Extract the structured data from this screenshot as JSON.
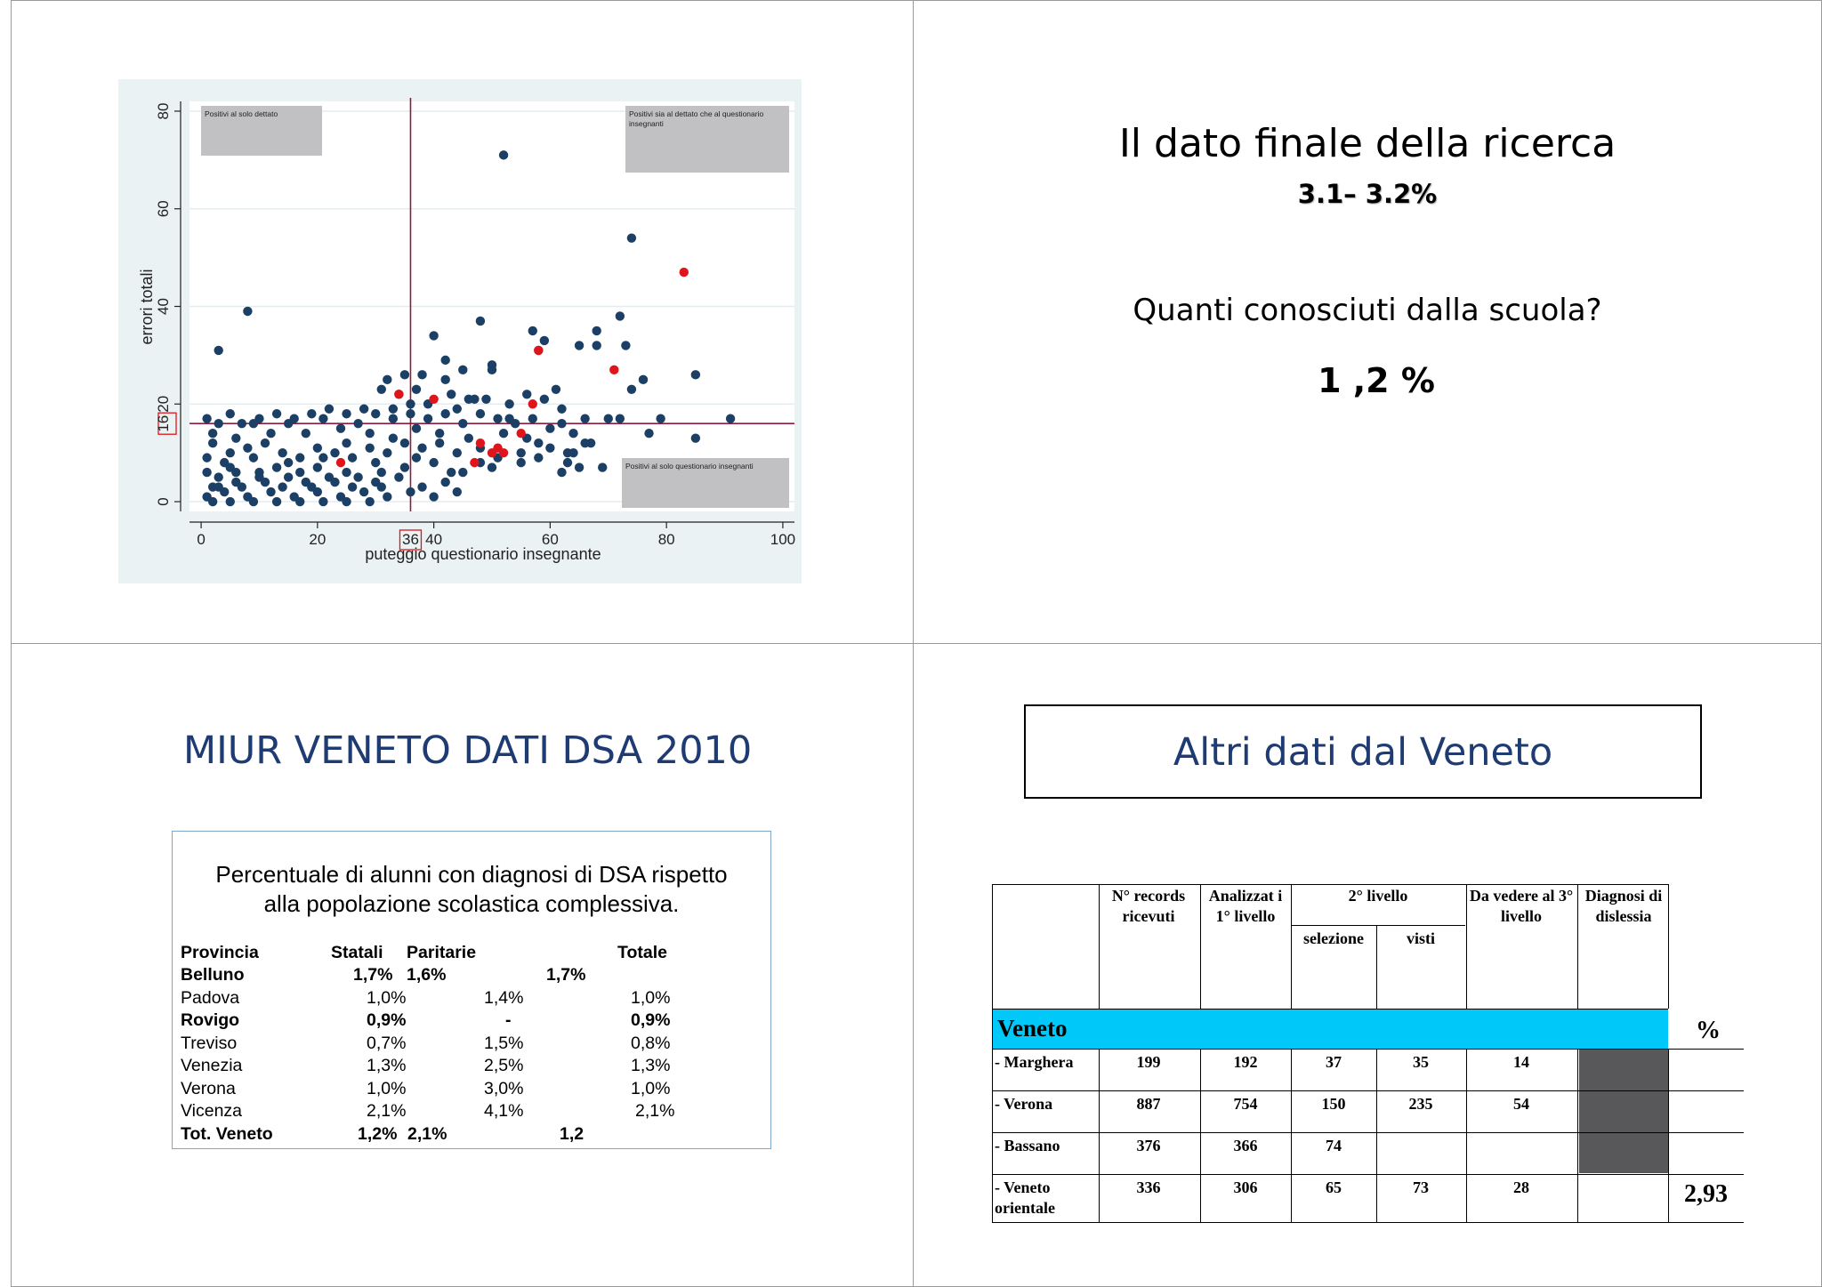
{
  "slide1": {
    "chart_data": {
      "type": "scatter",
      "xlabel": "puteggio questionario insegnante",
      "ylabel": "errori totali",
      "xlim": [
        -2,
        102
      ],
      "ylim": [
        -2,
        82
      ],
      "x_ticks": [
        "0",
        "20",
        "40",
        "60",
        "80",
        "100"
      ],
      "y_ticks": [
        "0",
        "20",
        "40",
        "60",
        "80"
      ],
      "x_ticks_values": [
        0,
        20,
        40,
        60,
        80,
        100
      ],
      "y_ticks_values": [
        0,
        20,
        40,
        60,
        80
      ],
      "threshold_x": 36,
      "threshold_y": 16,
      "threshold_x_label": "36",
      "threshold_y_label": "16",
      "grid": true,
      "annotations": [
        "Positivi al solo dettato",
        "Positivi sia al dettato che al questionario insegnanti",
        "Positivi al solo questionario insegnanti"
      ],
      "series": [
        {
          "color": "#1c3f66",
          "points": [
            [
              52,
              71
            ],
            [
              74,
              54
            ],
            [
              8,
              39
            ],
            [
              72,
              38
            ],
            [
              48,
              37
            ],
            [
              3,
              31
            ],
            [
              40,
              34
            ],
            [
              58,
              31
            ],
            [
              57,
              35
            ],
            [
              59,
              33
            ],
            [
              65,
              32
            ],
            [
              68,
              35
            ],
            [
              68,
              32
            ],
            [
              73,
              32
            ],
            [
              85,
              26
            ],
            [
              76,
              25
            ],
            [
              74,
              23
            ],
            [
              50,
              28
            ],
            [
              50,
              27
            ],
            [
              42,
              29
            ],
            [
              45,
              27
            ],
            [
              42,
              25
            ],
            [
              38,
              26
            ],
            [
              35,
              26
            ],
            [
              32,
              25
            ],
            [
              31,
              23
            ],
            [
              34,
              22
            ],
            [
              37,
              23
            ],
            [
              43,
              22
            ],
            [
              46,
              21
            ],
            [
              49,
              21
            ],
            [
              53,
              20
            ],
            [
              56,
              22
            ],
            [
              59,
              21
            ],
            [
              61,
              23
            ],
            [
              62,
              19
            ],
            [
              57,
              17
            ],
            [
              54,
              16
            ],
            [
              51,
              17
            ],
            [
              48,
              18
            ],
            [
              45,
              16
            ],
            [
              42,
              18
            ],
            [
              39,
              17
            ],
            [
              36,
              18
            ],
            [
              33,
              17
            ],
            [
              30,
              18
            ],
            [
              28,
              19
            ],
            [
              25,
              18
            ],
            [
              22,
              19
            ],
            [
              19,
              18
            ],
            [
              16,
              17
            ],
            [
              13,
              18
            ],
            [
              10,
              17
            ],
            [
              7,
              16
            ],
            [
              5,
              18
            ],
            [
              3,
              16
            ],
            [
              1,
              17
            ],
            [
              66,
              17
            ],
            [
              70,
              17
            ],
            [
              72,
              17
            ],
            [
              79,
              17
            ],
            [
              77,
              14
            ],
            [
              85,
              13
            ],
            [
              91,
              17
            ],
            [
              67,
              12
            ],
            [
              63,
              10
            ],
            [
              60,
              11
            ],
            [
              58,
              9
            ],
            [
              55,
              10
            ],
            [
              51,
              9
            ],
            [
              48,
              11
            ],
            [
              44,
              10
            ],
            [
              41,
              12
            ],
            [
              38,
              11
            ],
            [
              35,
              12
            ],
            [
              32,
              10
            ],
            [
              29,
              11
            ],
            [
              26,
              9
            ],
            [
              23,
              10
            ],
            [
              20,
              11
            ],
            [
              17,
              9
            ],
            [
              14,
              10
            ],
            [
              11,
              12
            ],
            [
              8,
              11
            ],
            [
              5,
              10
            ],
            [
              2,
              12
            ],
            [
              1,
              9
            ],
            [
              65,
              7
            ],
            [
              69,
              7
            ],
            [
              62,
              6
            ],
            [
              55,
              8
            ],
            [
              50,
              7
            ],
            [
              45,
              6
            ],
            [
              40,
              8
            ],
            [
              35,
              7
            ],
            [
              30,
              8
            ],
            [
              25,
              6
            ],
            [
              20,
              7
            ],
            [
              15,
              8
            ],
            [
              10,
              6
            ],
            [
              5,
              7
            ],
            [
              1,
              6
            ],
            [
              42,
              4
            ],
            [
              38,
              3
            ],
            [
              34,
              5
            ],
            [
              30,
              4
            ],
            [
              26,
              3
            ],
            [
              22,
              5
            ],
            [
              18,
              4
            ],
            [
              14,
              3
            ],
            [
              10,
              5
            ],
            [
              6,
              4
            ],
            [
              2,
              3
            ],
            [
              1,
              1
            ],
            [
              4,
              2
            ],
            [
              8,
              1
            ],
            [
              12,
              2
            ],
            [
              16,
              1
            ],
            [
              20,
              2
            ],
            [
              24,
              1
            ],
            [
              28,
              2
            ],
            [
              32,
              1
            ],
            [
              36,
              2
            ],
            [
              40,
              1
            ],
            [
              44,
              2
            ],
            [
              3,
              5
            ],
            [
              7,
              3
            ],
            [
              11,
              4
            ],
            [
              15,
              5
            ],
            [
              19,
              3
            ],
            [
              23,
              4
            ],
            [
              27,
              5
            ],
            [
              31,
              3
            ],
            [
              4,
              8
            ],
            [
              9,
              9
            ],
            [
              13,
              7
            ],
            [
              17,
              6
            ],
            [
              21,
              9
            ],
            [
              25,
              12
            ],
            [
              29,
              14
            ],
            [
              33,
              13
            ],
            [
              37,
              15
            ],
            [
              41,
              14
            ],
            [
              46,
              13
            ],
            [
              52,
              14
            ],
            [
              56,
              13
            ],
            [
              60,
              15
            ],
            [
              64,
              14
            ],
            [
              47,
              21
            ],
            [
              44,
              19
            ],
            [
              36,
              20
            ],
            [
              27,
              16
            ],
            [
              24,
              15
            ],
            [
              18,
              14
            ],
            [
              12,
              14
            ],
            [
              6,
              13
            ],
            [
              2,
              14
            ],
            [
              62,
              16
            ],
            [
              66,
              12
            ],
            [
              58,
              12
            ],
            [
              9,
              16
            ],
            [
              15,
              16
            ],
            [
              21,
              17
            ],
            [
              33,
              19
            ],
            [
              39,
              20
            ],
            [
              53,
              17
            ],
            [
              63,
              8
            ],
            [
              64,
              10
            ],
            [
              48,
              8
            ],
            [
              43,
              6
            ],
            [
              37,
              9
            ],
            [
              31,
              6
            ],
            [
              6,
              6
            ],
            [
              3,
              3
            ],
            [
              2,
              0
            ],
            [
              5,
              0
            ],
            [
              9,
              0
            ],
            [
              13,
              0
            ],
            [
              17,
              0
            ],
            [
              21,
              0
            ],
            [
              25,
              0
            ],
            [
              29,
              0
            ]
          ]
        },
        {
          "color": "#e0141b",
          "points": [
            [
              83,
              47
            ],
            [
              58,
              31
            ],
            [
              71,
              27
            ],
            [
              34,
              22
            ],
            [
              40,
              21
            ],
            [
              57,
              20
            ],
            [
              55,
              14
            ],
            [
              48,
              12
            ],
            [
              51,
              11
            ],
            [
              52,
              10
            ],
            [
              50,
              10
            ],
            [
              47,
              8
            ],
            [
              24,
              8
            ]
          ]
        }
      ]
    }
  },
  "slide2": {
    "title": "Il dato finale della ricerca",
    "range": "3.1– 3.2%",
    "question": "Quanti conosciuti dalla scuola?",
    "answer": "1 ,2  %"
  },
  "slide3": {
    "title": "MIUR VENETO DATI DSA 2010",
    "caption_line1": "Percentuale di alunni con diagnosi di DSA rispetto",
    "caption_line2": "alla popolazione scolastica complessiva.",
    "headers": [
      "Provincia",
      "Statali",
      "Paritarie",
      "Totale"
    ],
    "rows": [
      {
        "provincia": "Belluno",
        "statali": "1,7%",
        "paritarie": "1,6%",
        "totale": "1,7%",
        "bold": true
      },
      {
        "provincia": "Padova",
        "statali": "1,0%",
        "paritarie": "1,4%",
        "totale": "1,0%",
        "bold": false
      },
      {
        "provincia": "Rovigo",
        "statali": "0,9%",
        "paritarie": "-",
        "totale": "0,9%",
        "bold": true
      },
      {
        "provincia": "Treviso",
        "statali": "0,7%",
        "paritarie": "1,5%",
        "totale": "0,8%",
        "bold": false
      },
      {
        "provincia": "Venezia",
        "statali": "1,3%",
        "paritarie": "2,5%",
        "totale": "1,3%",
        "bold": false
      },
      {
        "provincia": "Verona",
        "statali": "1,0%",
        "paritarie": "3,0%",
        "totale": "1,0%",
        "bold": false
      },
      {
        "provincia": "Vicenza",
        "statali": "2,1%",
        "paritarie": "4,1%",
        "totale": "2,1%",
        "bold": false
      },
      {
        "provincia": "Tot. Veneto",
        "statali": "1,2%",
        "paritarie": "2,1%",
        "totale": "1,2",
        "bold": true
      }
    ]
  },
  "slide4": {
    "title": "Altri dati dal Veneto",
    "headers": {
      "records": "N° records ricevuti",
      "analizzati": "Analizzat i 1° livello",
      "secondo": "2° livello",
      "selezione": "selezione",
      "visti": "visti",
      "da_vedere": "Da vedere al 3° livello",
      "diagnosi": "Diagnosi di dislessia",
      "percent": "%"
    },
    "region": "Veneto",
    "rows": [
      {
        "name": "- Marghera",
        "records": "199",
        "analizzati": "192",
        "selezione": "37",
        "visti": "35",
        "da_vedere": "14",
        "diagnosi": "",
        "pct": ""
      },
      {
        "name": "- Verona",
        "records": "887",
        "analizzati": "754",
        "selezione": "150",
        "visti": "235",
        "da_vedere": "54",
        "diagnosi": "",
        "pct": ""
      },
      {
        "name": "- Bassano",
        "records": "376",
        "analizzati": "366",
        "selezione": "74",
        "visti": "",
        "da_vedere": "",
        "diagnosi": "",
        "pct": ""
      },
      {
        "name": "-  Veneto orientale",
        "records": "336",
        "analizzati": "306",
        "selezione": "65",
        "visti": "73",
        "da_vedere": "28",
        "diagnosi": "",
        "pct": "2,93"
      }
    ],
    "colors": {
      "region_bar": "#00c8f8",
      "dark_cell": "#58585a"
    }
  }
}
